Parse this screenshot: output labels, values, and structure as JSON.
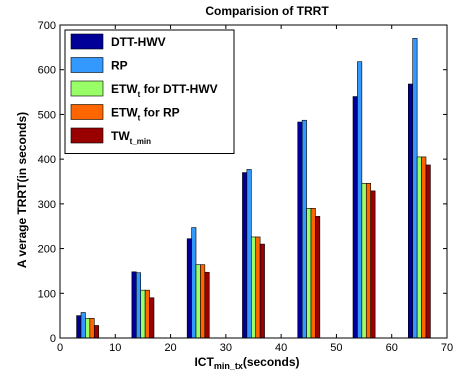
{
  "chart_data": {
    "type": "bar",
    "title": "Comparision of TRRT",
    "xlabel": {
      "main": "ICT",
      "sub": "min_tx",
      "suffix": "(seconds)"
    },
    "ylabel": "A verage TRRT(in seconds)",
    "xlim": [
      0,
      70
    ],
    "ylim": [
      0,
      700
    ],
    "xticks": [
      0,
      10,
      20,
      30,
      40,
      50,
      60,
      70
    ],
    "yticks": [
      0,
      100,
      200,
      300,
      400,
      500,
      600,
      700
    ],
    "categories": [
      5,
      15,
      25,
      35,
      45,
      55,
      65
    ],
    "grid": false,
    "legend_position": "top-left",
    "series": [
      {
        "name": "DTT-HWV",
        "legend_main": "DTT-HWV",
        "legend_sub": "",
        "legend_suffix": "",
        "color": "#000099",
        "values": [
          50,
          148,
          222,
          370,
          483,
          540,
          568
        ]
      },
      {
        "name": "RP",
        "legend_main": "RP",
        "legend_sub": "",
        "legend_suffix": "",
        "color": "#3399ff",
        "values": [
          57,
          146,
          247,
          377,
          487,
          618,
          670
        ]
      },
      {
        "name": "ETWt for DTT-HWV",
        "legend_main": "ETW",
        "legend_sub": "t",
        "legend_suffix": " for DTT-HWV",
        "color": "#99ff66",
        "values": [
          44,
          107,
          164,
          226,
          290,
          346,
          405
        ]
      },
      {
        "name": "ETWt for RP",
        "legend_main": "ETW",
        "legend_sub": "t",
        "legend_suffix": " for RP",
        "color": "#ff6600",
        "values": [
          44,
          107,
          164,
          226,
          290,
          346,
          405
        ]
      },
      {
        "name": "TWt_min",
        "legend_main": "TW",
        "legend_sub": "t_min",
        "legend_suffix": "",
        "color": "#990000",
        "values": [
          28,
          90,
          147,
          210,
          272,
          329,
          387
        ]
      }
    ]
  }
}
